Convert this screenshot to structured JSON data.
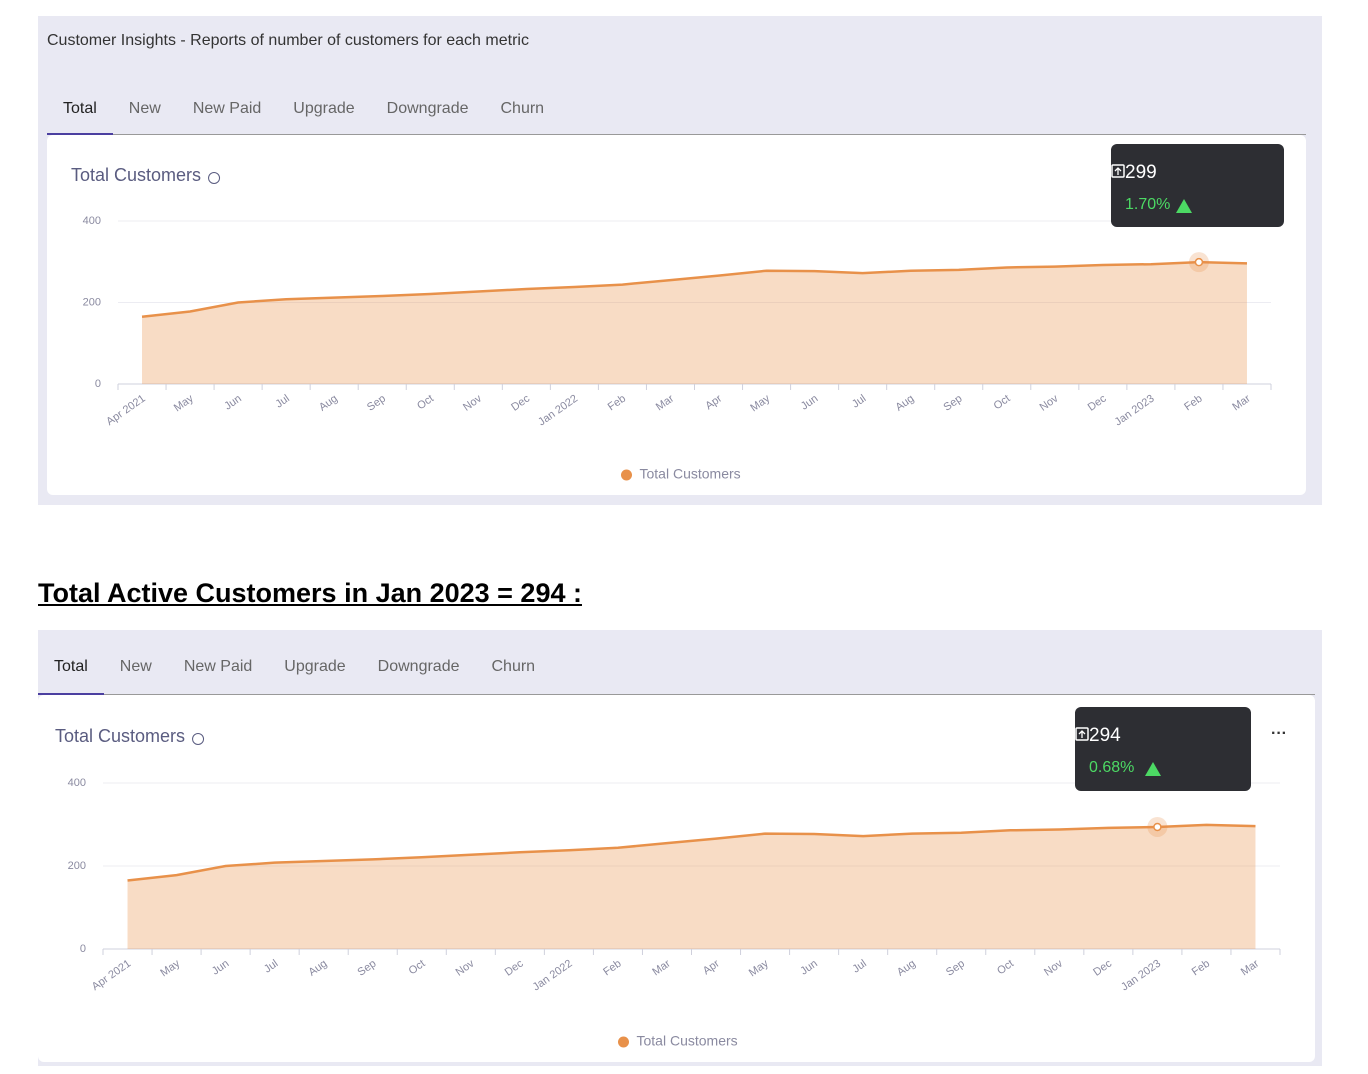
{
  "panel_title": "Customer Insights - Reports of number of customers for each metric",
  "tabs": [
    "Total",
    "New",
    "New Paid",
    "Upgrade",
    "Downgrade",
    "Churn"
  ],
  "heading": "Total Active Customers in Jan 2023 = 294 :",
  "chart_data": [
    {
      "type": "area",
      "title": "Total Customers",
      "categories": [
        "Apr 2021",
        "May",
        "Jun",
        "Jul",
        "Aug",
        "Sep",
        "Oct",
        "Nov",
        "Dec",
        "Jan 2022",
        "Feb",
        "Mar",
        "Apr",
        "May",
        "Jun",
        "Jul",
        "Aug",
        "Sep",
        "Oct",
        "Nov",
        "Dec",
        "Jan 2023",
        "Feb",
        "Mar"
      ],
      "series": [
        {
          "name": "Total Customers",
          "color": "#e8914a",
          "values": [
            165,
            178,
            200,
            208,
            212,
            216,
            221,
            227,
            233,
            238,
            244,
            255,
            266,
            278,
            277,
            272,
            278,
            280,
            286,
            288,
            292,
            294,
            299,
            296
          ]
        }
      ],
      "ylim": [
        0,
        400
      ],
      "yticks": [
        0,
        200,
        400
      ],
      "grid": true,
      "tooltip": {
        "value": 299,
        "change": "1.70%"
      }
    },
    {
      "type": "area",
      "title": "Total Customers",
      "categories": [
        "Apr 2021",
        "May",
        "Jun",
        "Jul",
        "Aug",
        "Sep",
        "Oct",
        "Nov",
        "Dec",
        "Jan 2022",
        "Feb",
        "Mar",
        "Apr",
        "May",
        "Jun",
        "Jul",
        "Aug",
        "Sep",
        "Oct",
        "Nov",
        "Dec",
        "Jan 2023",
        "Feb",
        "Mar"
      ],
      "series": [
        {
          "name": "Total Customers",
          "color": "#e8914a",
          "values": [
            165,
            178,
            200,
            208,
            212,
            216,
            221,
            227,
            233,
            238,
            244,
            255,
            266,
            278,
            277,
            272,
            278,
            280,
            286,
            288,
            292,
            294,
            299,
            296
          ]
        }
      ],
      "ylim": [
        0,
        400
      ],
      "yticks": [
        0,
        200,
        400
      ],
      "grid": true,
      "tooltip": {
        "value": 294,
        "change": "0.68%"
      }
    }
  ]
}
